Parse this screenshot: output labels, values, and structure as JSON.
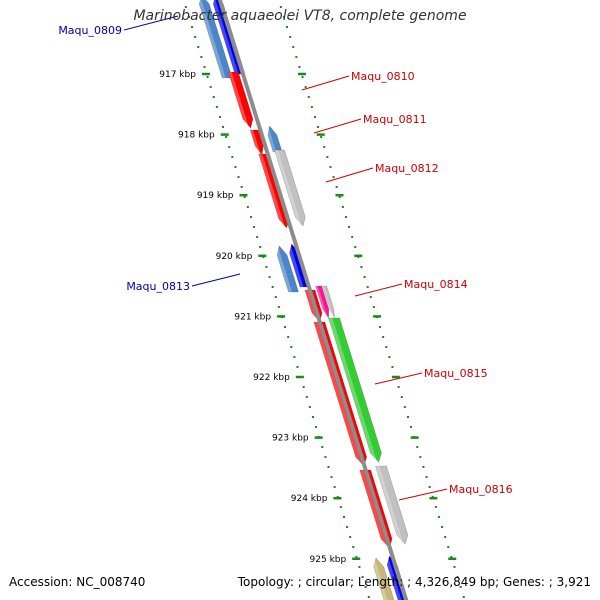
{
  "title": "Marinobacter aquaeolei VT8, complete genome",
  "footer": {
    "accession_label": "Accession:",
    "accession": "NC_008740",
    "topology_label": "Topology:",
    "topology": "circular",
    "length_label": "Length:",
    "length": "4,326,849 bp",
    "genes_label": "Genes:",
    "genes": "3,921"
  },
  "ticks": [
    "917 kbp",
    "918 kbp",
    "919 kbp",
    "920 kbp",
    "921 kbp",
    "922 kbp",
    "923 kbp",
    "924 kbp",
    "925 kbp"
  ],
  "colors": {
    "backbone": "#8c8c8c",
    "ruler": "#1a8a1a",
    "cds_forward": "#ff0000",
    "gene_forward": "#c0c0c0",
    "cds_reverse": "#0000ee",
    "gene_reverse": "#4a86c8",
    "trna": "#ff1493",
    "rrna": "#33cc33",
    "other": "#c8b878",
    "label_forward": "#cc0000",
    "label_reverse": "#0000aa"
  },
  "gene_labels": [
    {
      "name": "Maqu_0809",
      "strand": "reverse"
    },
    {
      "name": "Maqu_0810",
      "strand": "forward"
    },
    {
      "name": "Maqu_0811",
      "strand": "forward"
    },
    {
      "name": "Maqu_0812",
      "strand": "forward"
    },
    {
      "name": "Maqu_0813",
      "strand": "reverse"
    },
    {
      "name": "Maqu_0814",
      "strand": "forward"
    },
    {
      "name": "Maqu_0815",
      "strand": "forward"
    },
    {
      "name": "Maqu_0816",
      "strand": "forward"
    }
  ]
}
